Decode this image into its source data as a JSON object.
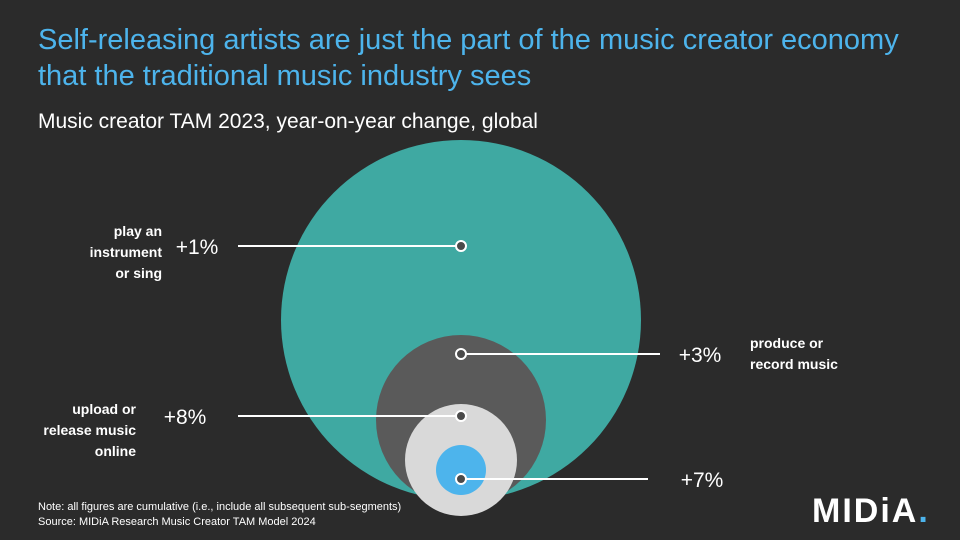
{
  "title": "Self-releasing artists are just the part of the music creator economy that the traditional music industry sees",
  "subtitle": "Music creator TAM 2023, year-on-year change, global",
  "chart_data": {
    "type": "nested-bubble",
    "segments": [
      {
        "label_lines": [
          "play an",
          "instrument",
          "or sing"
        ],
        "value": "+1%",
        "growth_pct": 1,
        "color": "#3fa9a2"
      },
      {
        "label_lines": [
          "produce or",
          "record music"
        ],
        "value": "+3%",
        "growth_pct": 3,
        "color": "#5a5a5a"
      },
      {
        "label_lines": [
          "upload or",
          "release music",
          "online"
        ],
        "value": "+8%",
        "growth_pct": 8,
        "color": "#d9d9d9"
      },
      {
        "label_lines": [],
        "value": "+7%",
        "growth_pct": 7,
        "color": "#4db4ec"
      }
    ]
  },
  "notes": {
    "line1": "Note: all figures are cumulative (i.e., include all subsequent sub-segments)",
    "line2": "Source: MIDiA Research Music Creator TAM Model 2024"
  },
  "logo": {
    "text": "MIDiA",
    "dot": "."
  }
}
